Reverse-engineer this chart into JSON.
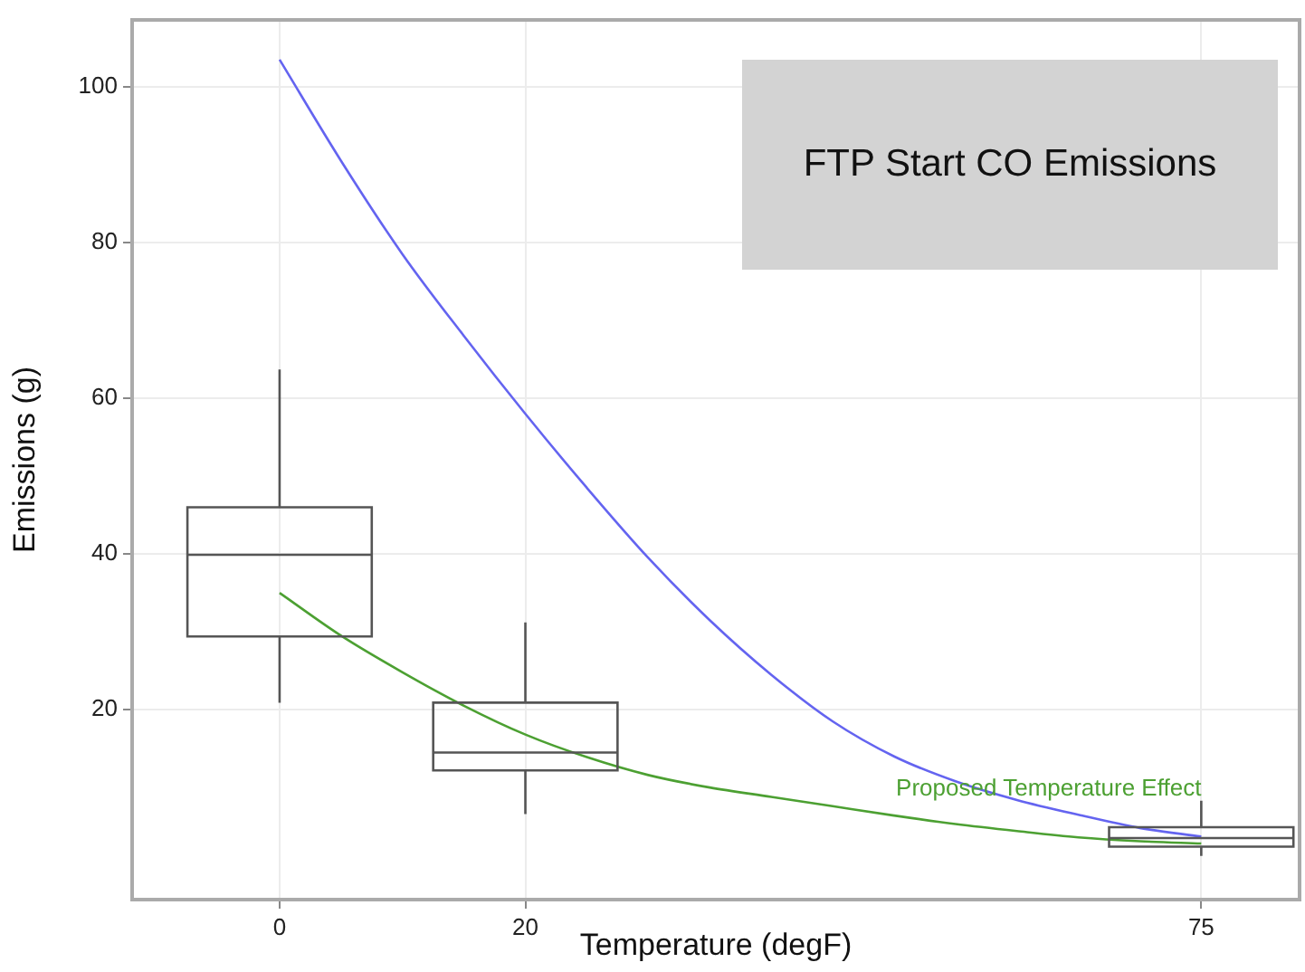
{
  "chart_data": {
    "type": "box",
    "title": "FTP Start CO Emissions",
    "xlabel": "Temperature (degF)",
    "ylabel": "Emissions (g)",
    "x": [
      0,
      20,
      75
    ],
    "color": "#555555",
    "boxes": [
      {
        "low": 20.9,
        "q1": 29.4,
        "median": 39.9,
        "q3": 46,
        "high": 63.7
      },
      {
        "low": 6.6,
        "q1": 12.2,
        "median": 14.5,
        "q3": 20.9,
        "high": 31.2
      },
      {
        "low": 1.2,
        "q1": 2.4,
        "median": 3.5,
        "q3": 4.9,
        "high": 8.3
      }
    ],
    "series": [
      {
        "type": "line",
        "color": "#6464f0",
        "x": [
          0,
          5,
          10,
          15,
          20,
          25,
          30,
          35,
          40,
          45,
          50,
          55,
          60,
          65,
          70,
          75
        ],
        "values": [
          103.5,
          90.5,
          78.5,
          68,
          58,
          48.5,
          39.5,
          31.5,
          24.5,
          18.5,
          14,
          10.8,
          8.4,
          6.5,
          4.8,
          3.7
        ]
      },
      {
        "type": "line",
        "name": "Proposed Temperature Effect",
        "color": "#4ca032",
        "x": [
          0,
          5,
          10,
          15,
          20,
          25,
          30,
          35,
          40,
          45,
          50,
          55,
          60,
          65,
          70,
          75
        ],
        "values": [
          35,
          29.5,
          24.8,
          20.5,
          16.8,
          13.9,
          11.6,
          10,
          8.8,
          7.6,
          6.4,
          5.3,
          4.4,
          3.6,
          3.1,
          2.8
        ]
      }
    ],
    "xlim": [
      -12,
      83
    ],
    "xticks": [
      0,
      20,
      75
    ],
    "ylim": [
      -4.4,
      108.6
    ],
    "yticks": [
      20,
      40,
      60,
      80,
      100
    ],
    "grid": true,
    "legend": false
  }
}
